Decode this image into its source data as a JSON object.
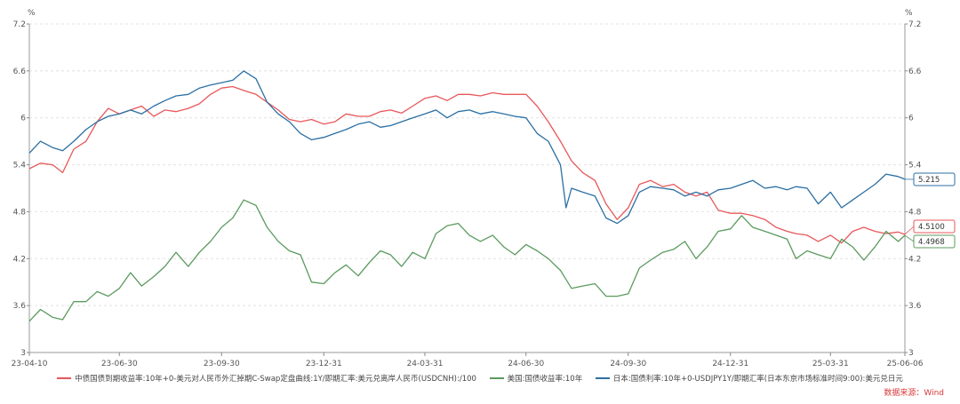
{
  "chart_data": {
    "type": "line",
    "left_unit": "%",
    "right_unit": "%",
    "ylim": [
      3,
      7.2
    ],
    "yticks": [
      "3",
      "3.6",
      "4.2",
      "4.8",
      "5.4",
      "6",
      "6.6",
      "7.2"
    ],
    "x_tick_labels": [
      "23-04-10",
      "23-06-30",
      "23-09-30",
      "23-12-31",
      "24-03-31",
      "24-06-30",
      "24-09-30",
      "24-12-31",
      "25-03-31",
      "25-06-06"
    ],
    "series": [
      {
        "name": "中债国债到期收益率:10年+0-美元对人民币外汇掉期C-Swap定盘曲线:1Y/即期汇率:美元兑离岸人民币(USDCNH):/100",
        "color": "#e8575a",
        "end_label": "4.5100",
        "points": [
          [
            "2023-04-10",
            5.35
          ],
          [
            "2023-04-20",
            5.42
          ],
          [
            "2023-05-01",
            5.4
          ],
          [
            "2023-05-10",
            5.3
          ],
          [
            "2023-05-20",
            5.6
          ],
          [
            "2023-05-31",
            5.7
          ],
          [
            "2023-06-10",
            5.95
          ],
          [
            "2023-06-20",
            6.12
          ],
          [
            "2023-06-30",
            6.05
          ],
          [
            "2023-07-10",
            6.1
          ],
          [
            "2023-07-20",
            6.15
          ],
          [
            "2023-07-31",
            6.02
          ],
          [
            "2023-08-10",
            6.1
          ],
          [
            "2023-08-20",
            6.08
          ],
          [
            "2023-08-31",
            6.12
          ],
          [
            "2023-09-10",
            6.18
          ],
          [
            "2023-09-20",
            6.3
          ],
          [
            "2023-09-30",
            6.38
          ],
          [
            "2023-10-10",
            6.4
          ],
          [
            "2023-10-20",
            6.35
          ],
          [
            "2023-10-31",
            6.3
          ],
          [
            "2023-11-10",
            6.2
          ],
          [
            "2023-11-20",
            6.1
          ],
          [
            "2023-11-30",
            5.98
          ],
          [
            "2023-12-10",
            5.95
          ],
          [
            "2023-12-20",
            5.98
          ],
          [
            "2023-12-31",
            5.92
          ],
          [
            "2024-01-10",
            5.95
          ],
          [
            "2024-01-20",
            6.05
          ],
          [
            "2024-01-31",
            6.02
          ],
          [
            "2024-02-10",
            6.02
          ],
          [
            "2024-02-20",
            6.08
          ],
          [
            "2024-02-29",
            6.1
          ],
          [
            "2024-03-10",
            6.06
          ],
          [
            "2024-03-20",
            6.15
          ],
          [
            "2024-03-31",
            6.25
          ],
          [
            "2024-04-10",
            6.28
          ],
          [
            "2024-04-20",
            6.22
          ],
          [
            "2024-04-30",
            6.3
          ],
          [
            "2024-05-10",
            6.3
          ],
          [
            "2024-05-20",
            6.28
          ],
          [
            "2024-05-31",
            6.32
          ],
          [
            "2024-06-10",
            6.3
          ],
          [
            "2024-06-20",
            6.3
          ],
          [
            "2024-06-30",
            6.3
          ],
          [
            "2024-07-10",
            6.15
          ],
          [
            "2024-07-20",
            5.95
          ],
          [
            "2024-07-31",
            5.7
          ],
          [
            "2024-08-10",
            5.45
          ],
          [
            "2024-08-20",
            5.3
          ],
          [
            "2024-08-31",
            5.2
          ],
          [
            "2024-09-10",
            4.9
          ],
          [
            "2024-09-20",
            4.7
          ],
          [
            "2024-09-30",
            4.85
          ],
          [
            "2024-10-10",
            5.15
          ],
          [
            "2024-10-20",
            5.2
          ],
          [
            "2024-10-31",
            5.12
          ],
          [
            "2024-11-10",
            5.15
          ],
          [
            "2024-11-20",
            5.05
          ],
          [
            "2024-11-30",
            5.0
          ],
          [
            "2024-12-10",
            5.05
          ],
          [
            "2024-12-20",
            4.82
          ],
          [
            "2024-12-31",
            4.78
          ],
          [
            "2025-01-10",
            4.78
          ],
          [
            "2025-01-20",
            4.75
          ],
          [
            "2025-01-31",
            4.7
          ],
          [
            "2025-02-10",
            4.6
          ],
          [
            "2025-02-20",
            4.55
          ],
          [
            "2025-02-28",
            4.52
          ],
          [
            "2025-03-10",
            4.5
          ],
          [
            "2025-03-20",
            4.42
          ],
          [
            "2025-03-31",
            4.5
          ],
          [
            "2025-04-10",
            4.4
          ],
          [
            "2025-04-20",
            4.55
          ],
          [
            "2025-04-30",
            4.6
          ],
          [
            "2025-05-10",
            4.55
          ],
          [
            "2025-05-20",
            4.52
          ],
          [
            "2025-05-31",
            4.54
          ],
          [
            "2025-06-06",
            4.51
          ]
        ]
      },
      {
        "name": "美国:国债收益率:10年",
        "color": "#5b9a5e",
        "end_label": "4.4968",
        "points": [
          [
            "2023-04-10",
            3.4
          ],
          [
            "2023-04-20",
            3.55
          ],
          [
            "2023-05-01",
            3.45
          ],
          [
            "2023-05-10",
            3.42
          ],
          [
            "2023-05-20",
            3.65
          ],
          [
            "2023-05-31",
            3.65
          ],
          [
            "2023-06-10",
            3.78
          ],
          [
            "2023-06-20",
            3.72
          ],
          [
            "2023-06-30",
            3.82
          ],
          [
            "2023-07-10",
            4.02
          ],
          [
            "2023-07-20",
            3.85
          ],
          [
            "2023-07-31",
            3.97
          ],
          [
            "2023-08-10",
            4.1
          ],
          [
            "2023-08-20",
            4.28
          ],
          [
            "2023-08-31",
            4.1
          ],
          [
            "2023-09-10",
            4.28
          ],
          [
            "2023-09-20",
            4.42
          ],
          [
            "2023-09-30",
            4.6
          ],
          [
            "2023-10-10",
            4.72
          ],
          [
            "2023-10-20",
            4.95
          ],
          [
            "2023-10-31",
            4.88
          ],
          [
            "2023-11-10",
            4.6
          ],
          [
            "2023-11-20",
            4.42
          ],
          [
            "2023-11-30",
            4.3
          ],
          [
            "2023-12-10",
            4.25
          ],
          [
            "2023-12-20",
            3.9
          ],
          [
            "2023-12-31",
            3.88
          ],
          [
            "2024-01-10",
            4.02
          ],
          [
            "2024-01-20",
            4.12
          ],
          [
            "2024-01-31",
            3.98
          ],
          [
            "2024-02-10",
            4.15
          ],
          [
            "2024-02-20",
            4.3
          ],
          [
            "2024-02-29",
            4.25
          ],
          [
            "2024-03-10",
            4.1
          ],
          [
            "2024-03-20",
            4.28
          ],
          [
            "2024-03-31",
            4.2
          ],
          [
            "2024-04-10",
            4.52
          ],
          [
            "2024-04-20",
            4.62
          ],
          [
            "2024-04-30",
            4.65
          ],
          [
            "2024-05-10",
            4.5
          ],
          [
            "2024-05-20",
            4.42
          ],
          [
            "2024-05-31",
            4.5
          ],
          [
            "2024-06-10",
            4.35
          ],
          [
            "2024-06-20",
            4.25
          ],
          [
            "2024-06-30",
            4.38
          ],
          [
            "2024-07-10",
            4.3
          ],
          [
            "2024-07-20",
            4.2
          ],
          [
            "2024-07-31",
            4.05
          ],
          [
            "2024-08-10",
            3.82
          ],
          [
            "2024-08-20",
            3.85
          ],
          [
            "2024-08-31",
            3.88
          ],
          [
            "2024-09-10",
            3.72
          ],
          [
            "2024-09-20",
            3.72
          ],
          [
            "2024-09-30",
            3.75
          ],
          [
            "2024-10-10",
            4.08
          ],
          [
            "2024-10-20",
            4.18
          ],
          [
            "2024-10-31",
            4.28
          ],
          [
            "2024-11-10",
            4.32
          ],
          [
            "2024-11-20",
            4.42
          ],
          [
            "2024-11-30",
            4.2
          ],
          [
            "2024-12-10",
            4.35
          ],
          [
            "2024-12-20",
            4.55
          ],
          [
            "2024-12-31",
            4.58
          ],
          [
            "2025-01-10",
            4.75
          ],
          [
            "2025-01-20",
            4.6
          ],
          [
            "2025-01-31",
            4.55
          ],
          [
            "2025-02-10",
            4.5
          ],
          [
            "2025-02-20",
            4.45
          ],
          [
            "2025-02-28",
            4.2
          ],
          [
            "2025-03-10",
            4.3
          ],
          [
            "2025-03-20",
            4.25
          ],
          [
            "2025-03-31",
            4.2
          ],
          [
            "2025-04-10",
            4.45
          ],
          [
            "2025-04-20",
            4.35
          ],
          [
            "2025-04-30",
            4.18
          ],
          [
            "2025-05-10",
            4.35
          ],
          [
            "2025-05-20",
            4.55
          ],
          [
            "2025-05-31",
            4.42
          ],
          [
            "2025-06-06",
            4.4968
          ]
        ]
      },
      {
        "name": "日本:国债利率:10年+0-USDJPY1Y/即期汇率(日本东京市场标准时间9:00):美元兑日元",
        "color": "#2b6fa3",
        "end_label": "5.215",
        "points": [
          [
            "2023-04-10",
            5.55
          ],
          [
            "2023-04-20",
            5.7
          ],
          [
            "2023-05-01",
            5.62
          ],
          [
            "2023-05-10",
            5.58
          ],
          [
            "2023-05-20",
            5.7
          ],
          [
            "2023-05-31",
            5.85
          ],
          [
            "2023-06-10",
            5.95
          ],
          [
            "2023-06-20",
            6.02
          ],
          [
            "2023-06-30",
            6.05
          ],
          [
            "2023-07-10",
            6.1
          ],
          [
            "2023-07-20",
            6.05
          ],
          [
            "2023-07-31",
            6.15
          ],
          [
            "2023-08-10",
            6.22
          ],
          [
            "2023-08-20",
            6.28
          ],
          [
            "2023-08-31",
            6.3
          ],
          [
            "2023-09-10",
            6.38
          ],
          [
            "2023-09-20",
            6.42
          ],
          [
            "2023-09-30",
            6.45
          ],
          [
            "2023-10-10",
            6.48
          ],
          [
            "2023-10-20",
            6.6
          ],
          [
            "2023-10-31",
            6.5
          ],
          [
            "2023-11-10",
            6.2
          ],
          [
            "2023-11-20",
            6.05
          ],
          [
            "2023-11-30",
            5.95
          ],
          [
            "2023-12-10",
            5.8
          ],
          [
            "2023-12-20",
            5.72
          ],
          [
            "2023-12-31",
            5.75
          ],
          [
            "2024-01-10",
            5.8
          ],
          [
            "2024-01-20",
            5.85
          ],
          [
            "2024-01-31",
            5.92
          ],
          [
            "2024-02-10",
            5.95
          ],
          [
            "2024-02-20",
            5.88
          ],
          [
            "2024-02-29",
            5.9
          ],
          [
            "2024-03-10",
            5.95
          ],
          [
            "2024-03-20",
            6.0
          ],
          [
            "2024-03-31",
            6.05
          ],
          [
            "2024-04-10",
            6.1
          ],
          [
            "2024-04-20",
            6.0
          ],
          [
            "2024-04-30",
            6.08
          ],
          [
            "2024-05-10",
            6.1
          ],
          [
            "2024-05-20",
            6.05
          ],
          [
            "2024-05-31",
            6.08
          ],
          [
            "2024-06-10",
            6.05
          ],
          [
            "2024-06-20",
            6.02
          ],
          [
            "2024-06-30",
            6.0
          ],
          [
            "2024-07-10",
            5.8
          ],
          [
            "2024-07-20",
            5.7
          ],
          [
            "2024-07-31",
            5.4
          ],
          [
            "2024-08-05",
            4.85
          ],
          [
            "2024-08-10",
            5.1
          ],
          [
            "2024-08-20",
            5.05
          ],
          [
            "2024-08-31",
            5.0
          ],
          [
            "2024-09-10",
            4.72
          ],
          [
            "2024-09-20",
            4.65
          ],
          [
            "2024-09-30",
            4.75
          ],
          [
            "2024-10-10",
            5.05
          ],
          [
            "2024-10-20",
            5.12
          ],
          [
            "2024-10-31",
            5.1
          ],
          [
            "2024-11-10",
            5.08
          ],
          [
            "2024-11-20",
            5.0
          ],
          [
            "2024-11-30",
            5.05
          ],
          [
            "2024-12-10",
            5.0
          ],
          [
            "2024-12-20",
            5.08
          ],
          [
            "2024-12-31",
            5.1
          ],
          [
            "2025-01-10",
            5.15
          ],
          [
            "2025-01-20",
            5.2
          ],
          [
            "2025-01-31",
            5.1
          ],
          [
            "2025-02-10",
            5.12
          ],
          [
            "2025-02-20",
            5.08
          ],
          [
            "2025-02-28",
            5.12
          ],
          [
            "2025-03-10",
            5.1
          ],
          [
            "2025-03-20",
            4.9
          ],
          [
            "2025-03-31",
            5.05
          ],
          [
            "2025-04-10",
            4.85
          ],
          [
            "2025-04-20",
            4.95
          ],
          [
            "2025-04-30",
            5.05
          ],
          [
            "2025-05-10",
            5.15
          ],
          [
            "2025-05-20",
            5.28
          ],
          [
            "2025-05-31",
            5.25
          ],
          [
            "2025-06-06",
            5.215
          ]
        ]
      }
    ]
  },
  "source_label": "数据来源：Wind"
}
